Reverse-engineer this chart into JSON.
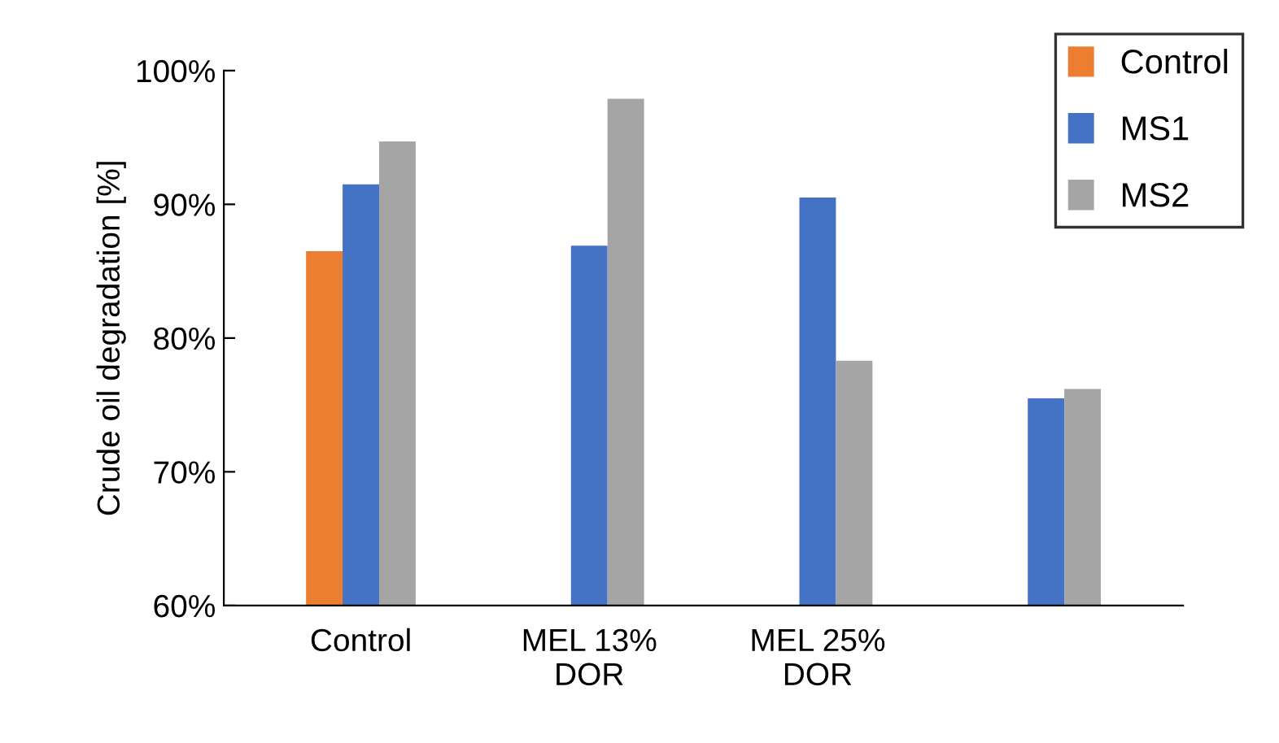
{
  "chart_data": {
    "type": "bar",
    "ylabel": "Crude oil degradation [%]",
    "categories": [
      "Control",
      "MEL 13%\nDOR",
      "MEL 25%\nDOR",
      null
    ],
    "series": [
      {
        "name": "Control",
        "color": "#ed7d31",
        "values": [
          86.5,
          null,
          null,
          null
        ]
      },
      {
        "name": "MS1",
        "color": "#4472c4",
        "values": [
          91.5,
          86.9,
          90.5,
          75.5
        ]
      },
      {
        "name": "MS2",
        "color": "#a5a5a5",
        "values": [
          94.7,
          97.9,
          78.3,
          76.2
        ]
      }
    ],
    "ylim": [
      60,
      100
    ],
    "yticks": [
      {
        "value": 60,
        "label": "60%"
      },
      {
        "value": 70,
        "label": "70%"
      },
      {
        "value": 80,
        "label": "80%"
      },
      {
        "value": 90,
        "label": "90%"
      },
      {
        "value": 100,
        "label": "100%"
      }
    ],
    "legend": "top right",
    "grid": false
  }
}
